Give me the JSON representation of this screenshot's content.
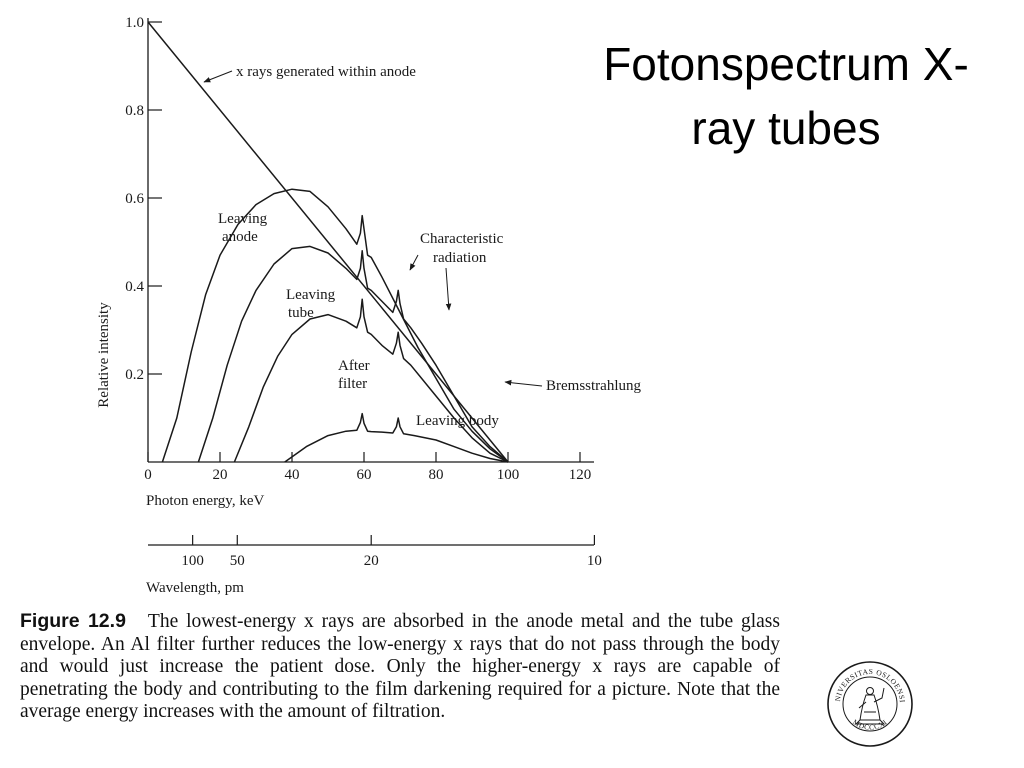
{
  "slide": {
    "title_line1": "Fotonspectrum X-",
    "title_line2": "ray tubes"
  },
  "caption": {
    "label": "Figure 12.9",
    "text": "The lowest-energy x rays are absorbed in the anode metal and the tube glass envelope. An Al filter further reduces the low-energy x rays that do not pass through the body and would just increase the patient dose. Only the higher-energy x rays are capable of penetrating the body and contributing to the film darkening required for a picture. Note that the average energy increases with the amount of filtration."
  },
  "seal": {
    "text_top": "UNIVERSITAS OSLOENSIS",
    "text_bottom": "MDCCCXI"
  },
  "colors": {
    "ink": "#1a1a1a",
    "background": "#ffffff"
  },
  "chart_data": {
    "type": "line",
    "xlabel": "Photon energy, keV",
    "ylabel": "Relative intensity",
    "xlim": [
      0,
      120
    ],
    "ylim": [
      0,
      1.0
    ],
    "x_ticks": [
      0,
      20,
      40,
      60,
      80,
      100,
      120
    ],
    "y_ticks": [
      0.2,
      0.4,
      0.6,
      0.8,
      1.0
    ],
    "y_tick_labels": [
      "0.2",
      "0.4",
      "0.6",
      "0.8",
      "1.0"
    ],
    "secondary_axis": {
      "label": "Wavelength, pm",
      "ticks": [
        {
          "label": "100",
          "keV": 12.4
        },
        {
          "label": "50",
          "keV": 24.8
        },
        {
          "label": "20",
          "keV": 62
        },
        {
          "label": "10",
          "keV": 124
        }
      ]
    },
    "series": [
      {
        "name": "x rays generated within anode",
        "x": [
          0,
          100
        ],
        "y": [
          1.0,
          0.0
        ]
      },
      {
        "name": "Leaving anode",
        "x": [
          4,
          8,
          12,
          16,
          20,
          25,
          30,
          35,
          40,
          45,
          50,
          55,
          58,
          59,
          59.5,
          60,
          61,
          62,
          65,
          70,
          75,
          80,
          85,
          90,
          95,
          100
        ],
        "y": [
          0.0,
          0.1,
          0.25,
          0.38,
          0.47,
          0.54,
          0.585,
          0.61,
          0.62,
          0.615,
          0.58,
          0.53,
          0.495,
          0.52,
          0.56,
          0.53,
          0.47,
          0.465,
          0.42,
          0.34,
          0.26,
          0.19,
          0.12,
          0.07,
          0.03,
          0.0
        ]
      },
      {
        "name": "Leaving tube",
        "x": [
          14,
          18,
          22,
          26,
          30,
          35,
          40,
          45,
          50,
          55,
          58,
          59,
          59.5,
          60,
          61,
          62,
          65,
          68,
          69,
          69.5,
          70,
          71,
          73,
          76,
          80,
          85,
          90,
          95,
          100
        ],
        "y": [
          0.0,
          0.1,
          0.22,
          0.32,
          0.39,
          0.45,
          0.485,
          0.49,
          0.475,
          0.44,
          0.415,
          0.44,
          0.48,
          0.44,
          0.395,
          0.39,
          0.365,
          0.34,
          0.365,
          0.39,
          0.36,
          0.325,
          0.305,
          0.27,
          0.22,
          0.15,
          0.08,
          0.035,
          0.0
        ]
      },
      {
        "name": "After filter",
        "x": [
          24,
          28,
          32,
          36,
          40,
          45,
          50,
          55,
          58,
          59,
          59.5,
          60,
          61,
          62,
          65,
          68,
          69,
          69.5,
          70,
          71,
          73,
          76,
          80,
          85,
          90,
          95,
          100
        ],
        "y": [
          0.0,
          0.08,
          0.17,
          0.24,
          0.29,
          0.325,
          0.335,
          0.32,
          0.305,
          0.33,
          0.37,
          0.33,
          0.295,
          0.29,
          0.265,
          0.245,
          0.27,
          0.295,
          0.265,
          0.235,
          0.22,
          0.19,
          0.15,
          0.1,
          0.055,
          0.02,
          0.0
        ]
      },
      {
        "name": "Leaving body",
        "x": [
          38,
          44,
          50,
          55,
          58,
          59,
          59.5,
          60,
          61,
          62,
          65,
          68,
          69,
          69.5,
          70,
          71,
          74,
          80,
          85,
          90,
          95,
          100
        ],
        "y": [
          0.0,
          0.035,
          0.06,
          0.07,
          0.072,
          0.09,
          0.11,
          0.088,
          0.07,
          0.069,
          0.068,
          0.066,
          0.08,
          0.1,
          0.08,
          0.064,
          0.06,
          0.05,
          0.035,
          0.02,
          0.008,
          0.0
        ]
      }
    ],
    "annotations": [
      {
        "id": "xrays",
        "text": "x rays generated within anode"
      },
      {
        "id": "anode_line1",
        "text": "Leaving"
      },
      {
        "id": "anode_line2",
        "text": "anode"
      },
      {
        "id": "char_line1",
        "text": "Characteristic"
      },
      {
        "id": "char_line2",
        "text": "radiation"
      },
      {
        "id": "tube_line1",
        "text": "Leaving"
      },
      {
        "id": "tube_line2",
        "text": "tube"
      },
      {
        "id": "filter_line1",
        "text": "After"
      },
      {
        "id": "filter_line2",
        "text": "filter"
      },
      {
        "id": "brems",
        "text": "Bremsstrahlung"
      },
      {
        "id": "body",
        "text": "Leaving body"
      }
    ],
    "grid": false,
    "legend": "none"
  }
}
